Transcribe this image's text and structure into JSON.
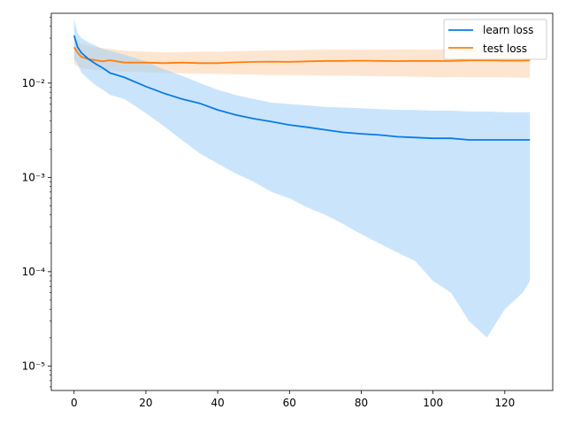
{
  "chart_data": {
    "type": "line",
    "title": "",
    "xlabel": "",
    "ylabel": "",
    "xlim": [
      -6.35,
      133.35
    ],
    "ylim": [
      5.5e-06,
      0.055
    ],
    "yscale": "log",
    "grid": false,
    "legend_position": "top-right",
    "x_ticks": [
      0,
      20,
      40,
      60,
      80,
      100,
      120
    ],
    "x_tick_labels": [
      "0",
      "20",
      "40",
      "60",
      "80",
      "100",
      "120"
    ],
    "y_ticks": [
      1e-05,
      0.0001,
      0.001,
      0.01
    ],
    "y_tick_labels": [
      "10⁻⁵",
      "10⁻⁴",
      "10⁻³",
      "10⁻²"
    ],
    "colors": {
      "learn": "#0a7be6",
      "learn_band": "#9fcff8",
      "test": "#ff7f0e",
      "test_band": "#fbd1ac"
    },
    "series": [
      {
        "name": "learn loss",
        "x": [
          0,
          1,
          2,
          4,
          6,
          8,
          10,
          14,
          20,
          25,
          30,
          35,
          40,
          45,
          50,
          55,
          60,
          65,
          70,
          75,
          80,
          85,
          90,
          95,
          100,
          105,
          110,
          115,
          120,
          125,
          127
        ],
        "mean": [
          0.032,
          0.024,
          0.021,
          0.018,
          0.016,
          0.0145,
          0.0128,
          0.0115,
          0.0092,
          0.0078,
          0.0068,
          0.0061,
          0.0052,
          0.0046,
          0.0042,
          0.0039,
          0.0036,
          0.0034,
          0.0032,
          0.003,
          0.0029,
          0.00282,
          0.0027,
          0.00265,
          0.0026,
          0.0026,
          0.0025,
          0.0025,
          0.0025,
          0.0025,
          0.0025
        ],
        "upper": [
          0.048,
          0.034,
          0.03,
          0.027,
          0.025,
          0.023,
          0.022,
          0.02,
          0.017,
          0.014,
          0.012,
          0.01,
          0.0085,
          0.0075,
          0.0068,
          0.0062,
          0.006,
          0.0058,
          0.0056,
          0.0055,
          0.0054,
          0.0053,
          0.0052,
          0.0052,
          0.0051,
          0.0051,
          0.005,
          0.005,
          0.0049,
          0.0049,
          0.0049
        ],
        "lower": [
          0.018,
          0.016,
          0.013,
          0.011,
          0.0095,
          0.0085,
          0.0075,
          0.0068,
          0.0048,
          0.0035,
          0.0025,
          0.0018,
          0.0014,
          0.0011,
          0.0009,
          0.0007,
          0.0006,
          0.00048,
          0.0004,
          0.00032,
          0.00025,
          0.0002,
          0.00016,
          0.00013,
          8e-05,
          6e-05,
          3e-05,
          2e-05,
          4e-05,
          6e-05,
          8e-05
        ]
      },
      {
        "name": "test loss",
        "x": [
          0,
          1,
          2,
          4,
          6,
          8,
          10,
          14,
          20,
          25,
          30,
          35,
          40,
          45,
          50,
          55,
          60,
          65,
          70,
          75,
          80,
          85,
          90,
          95,
          100,
          105,
          110,
          115,
          120,
          125,
          127
        ],
        "mean": [
          0.024,
          0.021,
          0.019,
          0.018,
          0.0175,
          0.017,
          0.0175,
          0.0165,
          0.0165,
          0.0163,
          0.0165,
          0.0163,
          0.0163,
          0.0166,
          0.0168,
          0.0169,
          0.0168,
          0.017,
          0.0172,
          0.0172,
          0.0173,
          0.0172,
          0.0171,
          0.0172,
          0.0172,
          0.0172,
          0.0174,
          0.0174,
          0.0173,
          0.0173,
          0.0174
        ],
        "upper": [
          0.028,
          0.027,
          0.026,
          0.025,
          0.024,
          0.0235,
          0.023,
          0.022,
          0.0215,
          0.0212,
          0.0213,
          0.0215,
          0.0215,
          0.0218,
          0.022,
          0.0222,
          0.0223,
          0.0225,
          0.0225,
          0.0226,
          0.0226,
          0.0226,
          0.0227,
          0.0227,
          0.0228,
          0.0228,
          0.0229,
          0.0229,
          0.023,
          0.023,
          0.023
        ],
        "lower": [
          0.016,
          0.015,
          0.0145,
          0.014,
          0.0138,
          0.0136,
          0.0134,
          0.0132,
          0.013,
          0.0128,
          0.0127,
          0.0126,
          0.0125,
          0.0124,
          0.0123,
          0.0122,
          0.0122,
          0.0121,
          0.012,
          0.012,
          0.0119,
          0.0118,
          0.0118,
          0.0117,
          0.0116,
          0.0116,
          0.0115,
          0.0115,
          0.0115,
          0.0114,
          0.0114
        ]
      }
    ]
  }
}
